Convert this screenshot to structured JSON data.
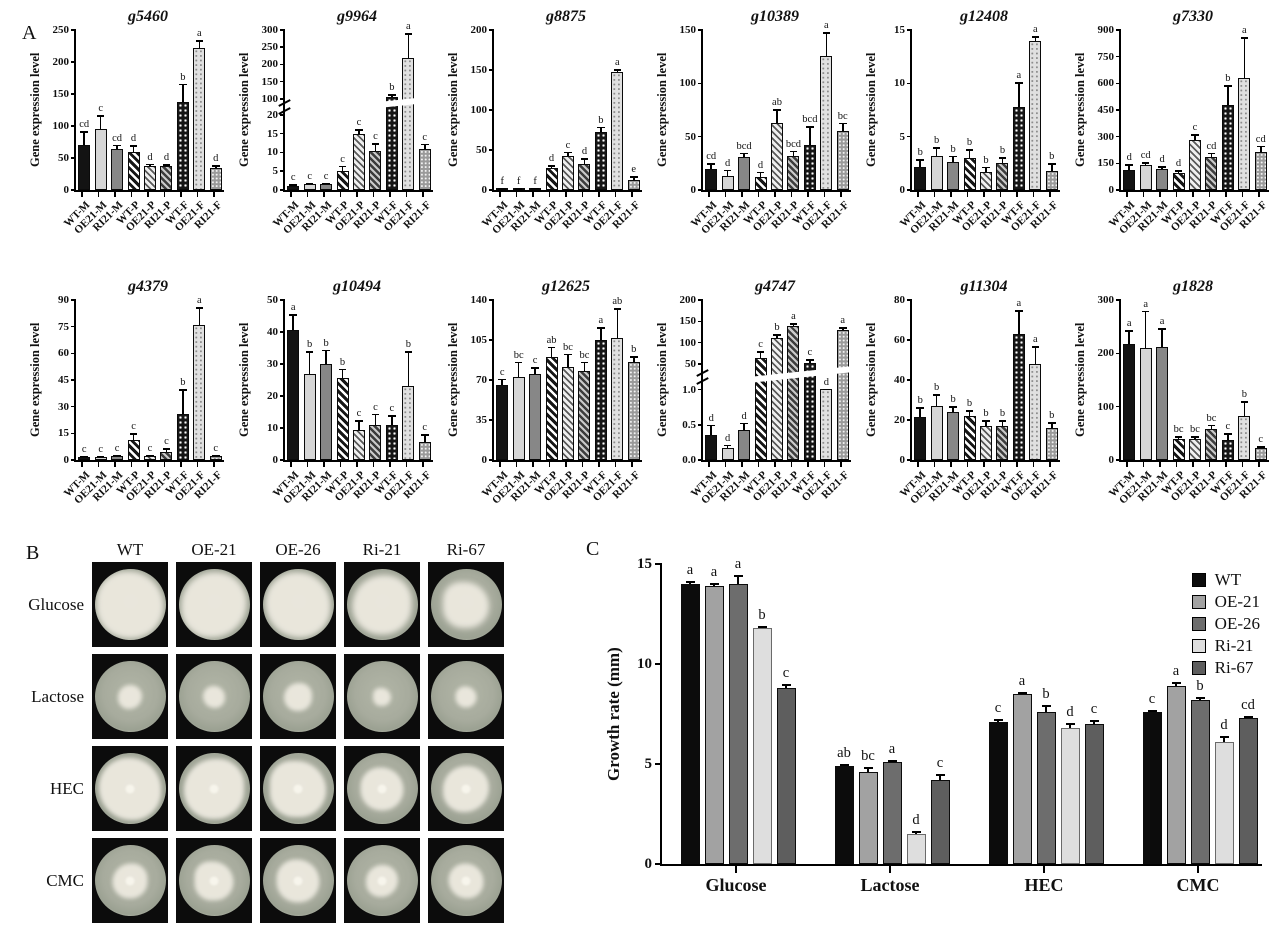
{
  "figure": {
    "panel_a_label": "A",
    "panel_b_label": "B",
    "panel_c_label": "C"
  },
  "panel_a": {
    "ylabel": "Gene expression level",
    "categories": [
      "WT-M",
      "OE21-M",
      "RI21-M",
      "WT-P",
      "OE21-P",
      "RI21-P",
      "WT-F",
      "OE21-F",
      "RI21-F"
    ],
    "bar_style_names": [
      "solid-black",
      "solid-light-gray",
      "solid-dark-gray",
      "hatched-white",
      "hatched-light",
      "hatched-gray",
      "dotted-black",
      "dotted-light",
      "dotted-gray"
    ]
  },
  "panel_b": {
    "columns": [
      "WT",
      "OE-21",
      "OE-26",
      "Ri-21",
      "Ri-67"
    ],
    "rows": [
      {
        "label": "Glucose",
        "center_spot": false,
        "sizes": [
          0.95,
          0.93,
          0.93,
          0.84,
          0.66
        ]
      },
      {
        "label": "Lactose",
        "center_spot": false,
        "sizes": [
          0.34,
          0.32,
          0.4,
          0.25,
          0.3
        ]
      },
      {
        "label": "HEC",
        "center_spot": true,
        "sizes": [
          0.88,
          0.85,
          0.8,
          0.62,
          0.66
        ]
      },
      {
        "label": "CMC",
        "center_spot": true,
        "sizes": [
          0.5,
          0.56,
          0.62,
          0.46,
          0.5
        ]
      }
    ]
  },
  "panel_c": {
    "ylabel": "Growth rate (mm)",
    "legend": [
      "WT",
      "OE-21",
      "OE-26",
      "Ri-21",
      "Ri-67"
    ],
    "series_colors": {
      "WT": "#0c0c0c",
      "OE-21": "#a2a2a2",
      "OE-26": "#6d6d6d",
      "Ri-21": "#dedede",
      "Ri-67": "#5e5e5e"
    }
  },
  "chart_data": [
    {
      "type": "bar",
      "panel": "A",
      "title": "g5460",
      "ylabel": "Gene expression level",
      "ylim": [
        0,
        250
      ],
      "yticks": [
        [
          0,
          "0"
        ],
        [
          50,
          "50"
        ],
        [
          100,
          "100"
        ],
        [
          150,
          "150"
        ],
        [
          200,
          "200"
        ],
        [
          250,
          "250"
        ]
      ],
      "scale": {
        "max": 250
      },
      "categories": [
        "WT-M",
        "OE21-M",
        "RI21-M",
        "WT-P",
        "OE21-P",
        "RI21-P",
        "WT-F",
        "OE21-F",
        "RI21-F"
      ],
      "values": [
        70,
        95,
        64,
        60,
        37,
        37,
        138,
        222,
        35
      ],
      "errors": [
        22,
        22,
        7,
        10,
        4,
        3,
        28,
        12,
        4
      ],
      "sig_letters": [
        "cd",
        "c",
        "cd",
        "d",
        "d",
        "d",
        "b",
        "a",
        "d"
      ]
    },
    {
      "type": "bar",
      "panel": "A",
      "title": "g9964",
      "ylabel": "Gene expression level",
      "ylim": [
        0,
        300
      ],
      "yticks": [
        [
          0,
          "0"
        ],
        [
          5,
          "5"
        ],
        [
          10,
          "10"
        ],
        [
          15,
          "15"
        ],
        [
          20,
          "20"
        ],
        [
          100,
          "100"
        ],
        [
          150,
          "150"
        ],
        [
          200,
          "200"
        ],
        [
          250,
          "250"
        ],
        [
          300,
          "300"
        ]
      ],
      "scale": {
        "segments": [
          {
            "min": 0,
            "max": 20,
            "frac": 0.47
          },
          {
            "min": 100,
            "max": 300,
            "frac": 0.43
          }
        ],
        "gap": 0.1
      },
      "categories": [
        "WT-M",
        "OE21-M",
        "RI21-M",
        "WT-P",
        "OE21-P",
        "RI21-P",
        "WT-F",
        "OE21-F",
        "RI21-F"
      ],
      "values": [
        1.2,
        1.5,
        1.5,
        5,
        15,
        10.5,
        105,
        220,
        10.8
      ],
      "errors": [
        0.4,
        0.4,
        0.4,
        1.5,
        1.2,
        2,
        8,
        70,
        1.5
      ],
      "sig_letters": [
        "c",
        "c",
        "c",
        "c",
        "c",
        "c",
        "b",
        "a",
        "c"
      ]
    },
    {
      "type": "bar",
      "panel": "A",
      "title": "g8875",
      "ylabel": "Gene expression level",
      "ylim": [
        0,
        200
      ],
      "yticks": [
        [
          0,
          "0"
        ],
        [
          50,
          "50"
        ],
        [
          100,
          "100"
        ],
        [
          150,
          "150"
        ],
        [
          200,
          "200"
        ]
      ],
      "scale": {
        "max": 200
      },
      "categories": [
        "WT-M",
        "OE21-M",
        "RI21-M",
        "WT-P",
        "OE21-P",
        "RI21-P",
        "WT-F",
        "OE21-F",
        "RI21-F"
      ],
      "values": [
        1,
        1,
        2,
        27,
        42,
        32,
        73,
        147,
        13
      ],
      "errors": [
        1,
        1,
        1,
        4,
        6,
        8,
        6,
        4,
        4
      ],
      "sig_letters": [
        "f",
        "f",
        "f",
        "d",
        "c",
        "d",
        "b",
        "a",
        "e"
      ]
    },
    {
      "type": "bar",
      "panel": "A",
      "title": "g10389",
      "ylabel": "Gene expression level",
      "ylim": [
        0,
        150
      ],
      "yticks": [
        [
          0,
          "0"
        ],
        [
          50,
          "50"
        ],
        [
          100,
          "100"
        ],
        [
          150,
          "150"
        ]
      ],
      "scale": {
        "max": 150
      },
      "categories": [
        "WT-M",
        "OE21-M",
        "RI21-M",
        "WT-P",
        "OE21-P",
        "RI21-P",
        "WT-F",
        "OE21-F",
        "RI21-F"
      ],
      "values": [
        20,
        13,
        31,
        12,
        63,
        32,
        42,
        126,
        55
      ],
      "errors": [
        5,
        6,
        4,
        5,
        13,
        5,
        18,
        22,
        8
      ],
      "sig_letters": [
        "cd",
        "d",
        "bcd",
        "d",
        "ab",
        "bcd",
        "bcd",
        "a",
        "bc"
      ]
    },
    {
      "type": "bar",
      "panel": "A",
      "title": "g12408",
      "ylabel": "Gene expression level",
      "ylim": [
        0,
        15
      ],
      "yticks": [
        [
          0,
          "0"
        ],
        [
          5,
          "5"
        ],
        [
          10,
          "10"
        ],
        [
          15,
          "15"
        ]
      ],
      "scale": {
        "max": 15
      },
      "categories": [
        "WT-M",
        "OE21-M",
        "RI21-M",
        "WT-P",
        "OE21-P",
        "RI21-P",
        "WT-F",
        "OE21-F",
        "RI21-F"
      ],
      "values": [
        2.2,
        3.2,
        2.6,
        3.0,
        1.7,
        2.5,
        7.8,
        14,
        1.8
      ],
      "errors": [
        0.7,
        0.8,
        0.6,
        0.8,
        0.5,
        0.6,
        2.3,
        0.4,
        0.7
      ],
      "sig_letters": [
        "b",
        "b",
        "b",
        "b",
        "b",
        "b",
        "a",
        "a",
        "b"
      ]
    },
    {
      "type": "bar",
      "panel": "A",
      "title": "g7330",
      "ylabel": "Gene expression level",
      "ylim": [
        0,
        900
      ],
      "yticks": [
        [
          0,
          "0"
        ],
        [
          150,
          "150"
        ],
        [
          300,
          "300"
        ],
        [
          450,
          "450"
        ],
        [
          600,
          "600"
        ],
        [
          750,
          "750"
        ],
        [
          900,
          "900"
        ]
      ],
      "scale": {
        "max": 900
      },
      "categories": [
        "WT-M",
        "OE21-M",
        "RI21-M",
        "WT-P",
        "OE21-P",
        "RI21-P",
        "WT-F",
        "OE21-F",
        "RI21-F"
      ],
      "values": [
        115,
        140,
        120,
        95,
        280,
        185,
        480,
        630,
        215
      ],
      "errors": [
        30,
        15,
        15,
        15,
        35,
        25,
        110,
        230,
        35
      ],
      "sig_letters": [
        "d",
        "cd",
        "d",
        "d",
        "c",
        "cd",
        "b",
        "a",
        "cd"
      ]
    },
    {
      "type": "bar",
      "panel": "A",
      "title": "g4379",
      "ylabel": "Gene expression level",
      "ylim": [
        0,
        90
      ],
      "yticks": [
        [
          0,
          "0"
        ],
        [
          15,
          "15"
        ],
        [
          30,
          "30"
        ],
        [
          45,
          "45"
        ],
        [
          60,
          "60"
        ],
        [
          75,
          "75"
        ],
        [
          90,
          "90"
        ]
      ],
      "scale": {
        "max": 90
      },
      "categories": [
        "WT-M",
        "OE21-M",
        "RI21-M",
        "WT-P",
        "OE21-P",
        "RI21-P",
        "WT-F",
        "OE21-F",
        "RI21-F"
      ],
      "values": [
        1.5,
        1.5,
        2,
        11,
        2,
        4.5,
        26,
        76,
        2
      ],
      "errors": [
        1,
        1,
        1,
        4,
        1,
        2,
        14,
        10,
        1
      ],
      "sig_letters": [
        "c",
        "c",
        "c",
        "c",
        "c",
        "c",
        "b",
        "a",
        "c"
      ]
    },
    {
      "type": "bar",
      "panel": "A",
      "title": "g10494",
      "ylabel": "Gene expression level",
      "ylim": [
        0,
        50
      ],
      "yticks": [
        [
          0,
          "0"
        ],
        [
          10,
          "10"
        ],
        [
          20,
          "20"
        ],
        [
          30,
          "30"
        ],
        [
          40,
          "40"
        ],
        [
          50,
          "50"
        ]
      ],
      "scale": {
        "max": 50
      },
      "categories": [
        "WT-M",
        "OE21-M",
        "RI21-M",
        "WT-P",
        "OE21-P",
        "RI21-P",
        "WT-F",
        "OE21-F",
        "RI21-F"
      ],
      "values": [
        40.5,
        27,
        30,
        25.5,
        9.5,
        11,
        11,
        23,
        5.5
      ],
      "errors": [
        5,
        7,
        4.5,
        3,
        3,
        3.5,
        3,
        11,
        2.5
      ],
      "sig_letters": [
        "a",
        "b",
        "b",
        "b",
        "c",
        "c",
        "c",
        "b",
        "c"
      ]
    },
    {
      "type": "bar",
      "panel": "A",
      "title": "g12625",
      "ylabel": "Gene expression level",
      "ylim": [
        0,
        140
      ],
      "yticks": [
        [
          0,
          "0"
        ],
        [
          35,
          "35"
        ],
        [
          70,
          "70"
        ],
        [
          105,
          "105"
        ],
        [
          140,
          "140"
        ]
      ],
      "scale": {
        "max": 140
      },
      "categories": [
        "WT-M",
        "OE21-M",
        "RI21-M",
        "WT-P",
        "OE21-P",
        "RI21-P",
        "WT-F",
        "OE21-F",
        "RI21-F"
      ],
      "values": [
        66,
        73,
        75,
        90,
        81,
        78,
        105,
        107,
        86
      ],
      "errors": [
        5,
        13,
        6,
        9,
        12,
        8,
        11,
        26,
        5
      ],
      "sig_letters": [
        "c",
        "bc",
        "c",
        "ab",
        "bc",
        "bc",
        "a",
        "ab",
        "b"
      ]
    },
    {
      "type": "bar",
      "panel": "A",
      "title": "g4747",
      "ylabel": "Gene expression level",
      "ylim": [
        0,
        200
      ],
      "yticks": [
        [
          0,
          "0.0"
        ],
        [
          0.5,
          "0.5"
        ],
        [
          1,
          "1.0"
        ],
        [
          50,
          "50"
        ],
        [
          100,
          "100"
        ],
        [
          150,
          "150"
        ],
        [
          200,
          "200"
        ]
      ],
      "scale": {
        "segments": [
          {
            "min": 0,
            "max": 1,
            "frac": 0.44
          },
          {
            "min": 50,
            "max": 200,
            "frac": 0.4
          }
        ],
        "gap": 0.16
      },
      "categories": [
        "WT-M",
        "OE21-M",
        "RI21-M",
        "WT-P",
        "OE21-P",
        "RI21-P",
        "WT-F",
        "OE21-F",
        "RI21-F"
      ],
      "values": [
        0.35,
        0.17,
        0.43,
        65,
        112,
        140,
        53,
        2,
        130
      ],
      "errors": [
        0.15,
        0.05,
        0.1,
        15,
        8,
        5,
        8,
        0.8,
        6
      ],
      "sig_letters": [
        "d",
        "d",
        "d",
        "c",
        "b",
        "a",
        "c",
        "d",
        "a"
      ]
    },
    {
      "type": "bar",
      "panel": "A",
      "title": "g11304",
      "ylabel": "Gene expression level",
      "ylim": [
        0,
        80
      ],
      "yticks": [
        [
          0,
          "0"
        ],
        [
          20,
          "20"
        ],
        [
          40,
          "40"
        ],
        [
          60,
          "60"
        ],
        [
          80,
          "80"
        ]
      ],
      "scale": {
        "max": 80
      },
      "categories": [
        "WT-M",
        "OE21-M",
        "RI21-M",
        "WT-P",
        "OE21-P",
        "RI21-P",
        "WT-F",
        "OE21-F",
        "RI21-F"
      ],
      "values": [
        21.5,
        27,
        24,
        22,
        17,
        17,
        63,
        48,
        16
      ],
      "errors": [
        5,
        6,
        3,
        3,
        3,
        3,
        12,
        9,
        3
      ],
      "sig_letters": [
        "b",
        "b",
        "b",
        "b",
        "b",
        "b",
        "a",
        "a",
        "b"
      ]
    },
    {
      "type": "bar",
      "panel": "A",
      "title": "g1828",
      "ylabel": "Gene expression level",
      "ylim": [
        0,
        300
      ],
      "yticks": [
        [
          0,
          "0"
        ],
        [
          100,
          "100"
        ],
        [
          200,
          "200"
        ],
        [
          300,
          "300"
        ]
      ],
      "scale": {
        "max": 300
      },
      "categories": [
        "WT-M",
        "OE21-M",
        "RI21-M",
        "WT-P",
        "OE21-P",
        "RI21-P",
        "WT-F",
        "OE21-F",
        "RI21-F"
      ],
      "values": [
        218,
        210,
        212,
        40,
        40,
        58,
        38,
        82,
        22
      ],
      "errors": [
        25,
        70,
        35,
        5,
        5,
        8,
        12,
        28,
        4
      ],
      "sig_letters": [
        "a",
        "a",
        "a",
        "bc",
        "bc",
        "bc",
        "c",
        "b",
        "c"
      ]
    },
    {
      "type": "grouped-bar",
      "panel": "C",
      "title": "",
      "ylabel": "Growth rate (mm)",
      "ylim": [
        0,
        15
      ],
      "yticks": [
        [
          0,
          "0"
        ],
        [
          5,
          "5"
        ],
        [
          10,
          "10"
        ],
        [
          15,
          "15"
        ]
      ],
      "legend_position": "top-right",
      "grid": false,
      "categories": [
        "Glucose",
        "Lactose",
        "HEC",
        "CMC"
      ],
      "series": [
        {
          "name": "WT",
          "values": [
            14.0,
            4.9,
            7.1,
            7.6
          ],
          "errors": [
            0.15,
            0.1,
            0.15,
            0.12
          ],
          "sig_letters": [
            "a",
            "ab",
            "c",
            "c"
          ]
        },
        {
          "name": "OE-21",
          "values": [
            13.9,
            4.6,
            8.5,
            8.9
          ],
          "errors": [
            0.15,
            0.25,
            0.12,
            0.2
          ],
          "sig_letters": [
            "a",
            "bc",
            "a",
            "a"
          ]
        },
        {
          "name": "OE-26",
          "values": [
            14.0,
            5.1,
            7.6,
            8.2
          ],
          "errors": [
            0.45,
            0.1,
            0.35,
            0.15
          ],
          "sig_letters": [
            "a",
            "a",
            "b",
            "b"
          ]
        },
        {
          "name": "Ri-21",
          "values": [
            11.8,
            1.5,
            6.8,
            6.1
          ],
          "errors": [
            0.12,
            0.15,
            0.25,
            0.3
          ],
          "sig_letters": [
            "b",
            "d",
            "d",
            "d"
          ]
        },
        {
          "name": "Ri-67",
          "values": [
            8.8,
            4.2,
            7.0,
            7.3
          ],
          "errors": [
            0.2,
            0.3,
            0.2,
            0.1
          ],
          "sig_letters": [
            "c",
            "c",
            "c",
            "cd"
          ]
        }
      ]
    }
  ]
}
